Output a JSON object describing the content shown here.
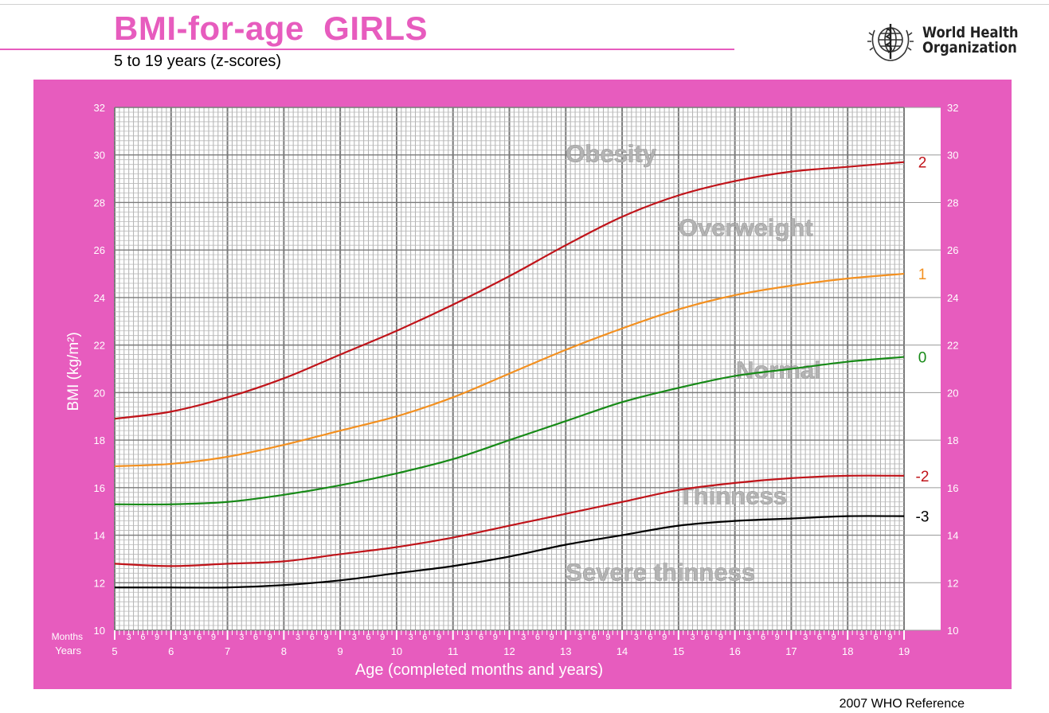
{
  "header": {
    "title": "BMI-for-age  GIRLS",
    "subtitle": "5 to 19 years (z-scores)"
  },
  "logo": {
    "organization_line1": "World Health",
    "organization_line2": "Organization",
    "icon": "who-emblem-icon"
  },
  "footer": {
    "reference": "2007 WHO Reference"
  },
  "colors": {
    "frame": "#e75cbe",
    "title": "#e75cbe",
    "z2": "#c0141a",
    "z1": "#f39020",
    "z0": "#178a17",
    "zneg2": "#c0141a",
    "zneg3": "#000000",
    "zone_text": "#b4b4b4"
  },
  "chart_data": {
    "type": "line",
    "title": "BMI-for-age  GIRLS",
    "subtitle": "5 to 19 years (z-scores)",
    "xlabel": "Age (completed months and years)",
    "ylabel": "BMI (kg/m²)",
    "xlim": [
      5,
      19
    ],
    "ylim": [
      10,
      32
    ],
    "grid": true,
    "x_row_labels": {
      "months": "Months",
      "years": "Years"
    },
    "x_major_ticks": [
      "5",
      "6",
      "7",
      "8",
      "9",
      "10",
      "11",
      "12",
      "13",
      "14",
      "15",
      "16",
      "17",
      "18",
      "19"
    ],
    "x_minor_ticks": [
      "3",
      "6",
      "9"
    ],
    "y_ticks": [
      "10",
      "12",
      "14",
      "16",
      "18",
      "20",
      "22",
      "24",
      "26",
      "28",
      "30",
      "32"
    ],
    "x": [
      5,
      6,
      7,
      8,
      9,
      10,
      11,
      12,
      13,
      14,
      15,
      16,
      17,
      18,
      19
    ],
    "series": [
      {
        "name": "2",
        "values": [
          18.9,
          19.2,
          19.8,
          20.6,
          21.6,
          22.6,
          23.7,
          24.9,
          26.2,
          27.4,
          28.3,
          28.9,
          29.3,
          29.5,
          29.7
        ]
      },
      {
        "name": "1",
        "values": [
          16.9,
          17.0,
          17.3,
          17.8,
          18.4,
          19.0,
          19.8,
          20.8,
          21.8,
          22.7,
          23.5,
          24.1,
          24.5,
          24.8,
          25.0
        ]
      },
      {
        "name": "0",
        "values": [
          15.3,
          15.3,
          15.4,
          15.7,
          16.1,
          16.6,
          17.2,
          18.0,
          18.8,
          19.6,
          20.2,
          20.7,
          21.0,
          21.3,
          21.5
        ]
      },
      {
        "name": "-2",
        "values": [
          12.8,
          12.7,
          12.8,
          12.9,
          13.2,
          13.5,
          13.9,
          14.4,
          14.9,
          15.4,
          15.9,
          16.2,
          16.4,
          16.5,
          16.5
        ]
      },
      {
        "name": "-3",
        "values": [
          11.8,
          11.8,
          11.8,
          11.9,
          12.1,
          12.4,
          12.7,
          13.1,
          13.6,
          14.0,
          14.4,
          14.6,
          14.7,
          14.8,
          14.8
        ]
      }
    ],
    "zones": [
      {
        "label": "Obesity"
      },
      {
        "label": "Overweight"
      },
      {
        "label": "Normal"
      },
      {
        "label": "Thinness"
      },
      {
        "label": "Severe thinness"
      }
    ]
  }
}
